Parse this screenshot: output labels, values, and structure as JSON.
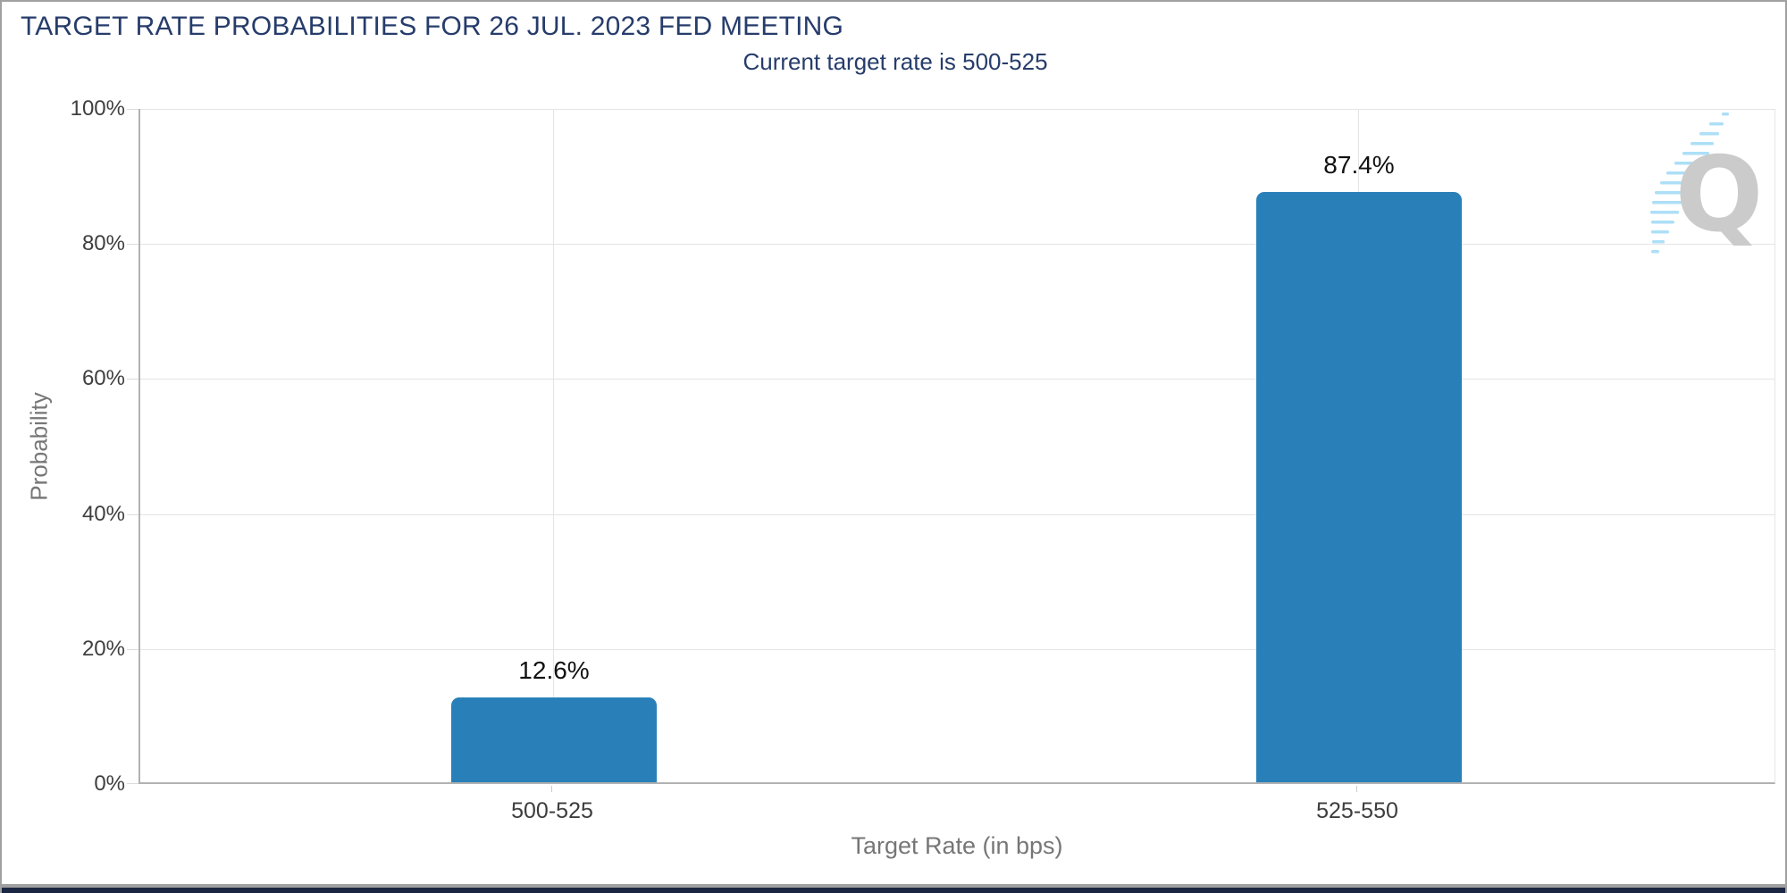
{
  "header": {
    "title": "TARGET RATE PROBABILITIES FOR 26 JUL. 2023 FED MEETING",
    "subtitle": "Current target rate is 500-525"
  },
  "chart_data": {
    "type": "bar",
    "title": "TARGET RATE PROBABILITIES FOR 26 JUL. 2023 FED MEETING",
    "subtitle": "Current target rate is 500-525",
    "categories": [
      "500-525",
      "525-550"
    ],
    "values": [
      12.6,
      87.4
    ],
    "value_labels": [
      "12.6%",
      "87.4%"
    ],
    "xlabel": "Target Rate (in bps)",
    "ylabel": "Probability",
    "ylim": [
      0,
      100
    ],
    "ytick_labels": [
      "100%",
      "80%",
      "60%",
      "40%",
      "20%",
      "0%"
    ],
    "grid": true,
    "legend": false,
    "bar_color": "#2980b9"
  },
  "watermark": {
    "letter": "Q"
  },
  "colors": {
    "title": "#263c6b",
    "subtitle": "#263c6b",
    "bar": "#2980b9",
    "grid": "#e4e4e4",
    "axis": "#b2b2b2",
    "tick-label": "#3f3f3f",
    "axis-title": "#767676",
    "value-label": "#111111",
    "category-label": "#3d3d3d",
    "border": "#a0a0a0",
    "footer-line": "#9f9f9f",
    "footer-bar": "#1b2742",
    "watermark-letter": "#c9c9c9",
    "watermark-swoosh": "#a9def7"
  }
}
